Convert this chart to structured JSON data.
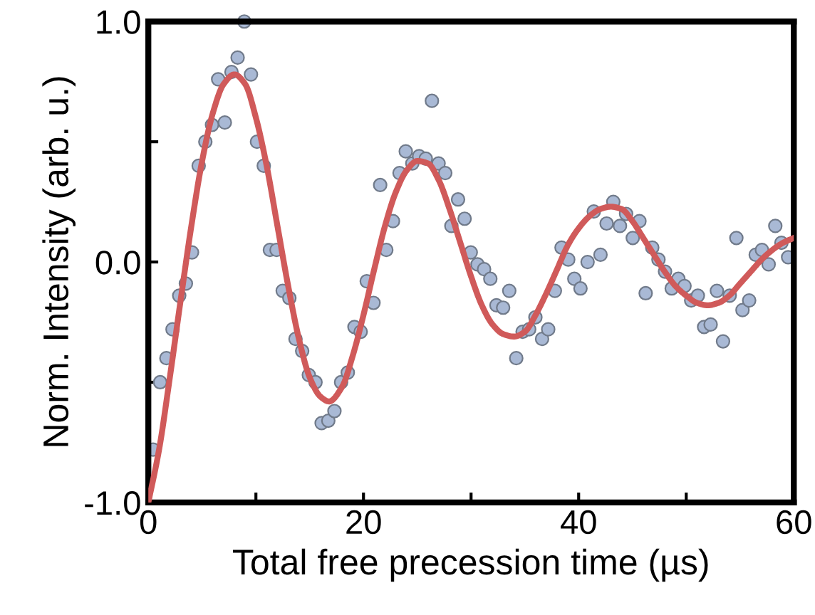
{
  "chart_data": {
    "type": "scatter",
    "xlabel": "Total free precession time (µs)",
    "ylabel": "Norm. Intensity (arb. u.)",
    "xlim": [
      0,
      60
    ],
    "ylim": [
      -1,
      1
    ],
    "xticks": [
      0,
      {
        "value": 10,
        "label": null
      },
      20,
      {
        "value": 30,
        "label": null
      },
      40,
      {
        "value": 50,
        "label": null
      },
      60
    ],
    "yticks": [
      {
        "value": -1,
        "label": "-1.0"
      },
      {
        "value": -0.5,
        "label": null
      },
      {
        "value": 0,
        "label": "0.0"
      },
      {
        "value": 0.5,
        "label": null
      },
      {
        "value": 1,
        "label": "1.0"
      }
    ],
    "grid": false,
    "series": [
      {
        "marker": "circle",
        "color": "#a9b9d5",
        "x": [
          0.44,
          1.1,
          1.68,
          2.25,
          2.87,
          3.49,
          4.06,
          4.68,
          5.3,
          5.92,
          6.49,
          7.11,
          7.73,
          8.3,
          8.92,
          9.54,
          10.1,
          10.73,
          11.3,
          11.92,
          12.49,
          13.11,
          13.68,
          14.3,
          14.92,
          15.54,
          16.11,
          16.73,
          17.3,
          17.92,
          18.54,
          19.16,
          19.74,
          20.3,
          20.93,
          21.55,
          22.12,
          22.74,
          23.35,
          23.93,
          24.54,
          25.17,
          25.79,
          26.36,
          26.98,
          27.6,
          28.17,
          28.79,
          29.4,
          29.97,
          30.6,
          31.21,
          31.79,
          32.36,
          32.98,
          33.55,
          34.2,
          34.79,
          35.4,
          35.98,
          36.6,
          37.17,
          37.79,
          38.41,
          39.03,
          39.6,
          40.17,
          40.83,
          41.41,
          42.03,
          42.6,
          43.22,
          43.84,
          44.41,
          45.03,
          45.65,
          46.23,
          46.84,
          47.42,
          48.03,
          48.65,
          49.27,
          49.84,
          50.46,
          51.08,
          51.66,
          52.27,
          52.85,
          53.42,
          54.04,
          54.66,
          55.23,
          55.85,
          56.46,
          57.04,
          57.66,
          58.28,
          58.85,
          59.47
        ],
        "values": [
          -0.78,
          -0.5,
          -0.4,
          -0.28,
          -0.14,
          -0.09,
          0.04,
          0.4,
          0.5,
          0.57,
          0.76,
          0.58,
          0.79,
          0.85,
          1.0,
          0.78,
          0.5,
          0.4,
          0.05,
          0.05,
          -0.12,
          -0.15,
          -0.32,
          -0.37,
          -0.47,
          -0.5,
          -0.67,
          -0.66,
          -0.62,
          -0.5,
          -0.46,
          -0.27,
          -0.29,
          -0.08,
          -0.17,
          0.32,
          0.05,
          0.17,
          0.37,
          0.46,
          0.41,
          0.44,
          0.43,
          0.67,
          0.41,
          0.37,
          0.15,
          0.26,
          0.18,
          0.04,
          -0.01,
          -0.03,
          -0.07,
          -0.18,
          -0.19,
          -0.12,
          -0.4,
          -0.29,
          -0.28,
          -0.23,
          -0.32,
          -0.28,
          -0.12,
          0.06,
          0.01,
          -0.07,
          -0.11,
          0.0,
          0.21,
          0.03,
          0.16,
          0.25,
          0.15,
          0.2,
          0.1,
          0.17,
          -0.13,
          0.06,
          0.01,
          -0.04,
          -0.11,
          -0.07,
          -0.1,
          -0.16,
          -0.14,
          -0.27,
          -0.26,
          -0.12,
          -0.33,
          -0.14,
          0.1,
          -0.2,
          -0.16,
          0.03,
          0.05,
          -0.01,
          0.15,
          0.08,
          0.02
        ]
      },
      {
        "type": "line",
        "marker": "none",
        "line_style": "solid",
        "color": "#d05a5a",
        "x": [
          0,
          1,
          2,
          3,
          4,
          5,
          6,
          7,
          8,
          9,
          10,
          11,
          12,
          13,
          14,
          15,
          16,
          16.8,
          18,
          19,
          20,
          21,
          22,
          23,
          24,
          25,
          26,
          27,
          28,
          29,
          30,
          31,
          32,
          33,
          34,
          35,
          36,
          37,
          38,
          39,
          40,
          41,
          42,
          43,
          44,
          45,
          46,
          47,
          48,
          49,
          50,
          51,
          52,
          53,
          54,
          55,
          56,
          57,
          58,
          59,
          60
        ],
        "values": [
          -1.0,
          -0.78,
          -0.48,
          -0.16,
          0.15,
          0.42,
          0.62,
          0.74,
          0.78,
          0.74,
          0.6,
          0.4,
          0.15,
          -0.1,
          -0.32,
          -0.48,
          -0.56,
          -0.58,
          -0.52,
          -0.39,
          -0.22,
          -0.03,
          0.15,
          0.29,
          0.38,
          0.42,
          0.41,
          0.34,
          0.22,
          0.08,
          -0.06,
          -0.18,
          -0.26,
          -0.3,
          -0.31,
          -0.29,
          -0.22,
          -0.13,
          -0.03,
          0.07,
          0.14,
          0.19,
          0.22,
          0.23,
          0.22,
          0.17,
          0.1,
          0.03,
          -0.04,
          -0.1,
          -0.14,
          -0.17,
          -0.18,
          -0.17,
          -0.14,
          -0.09,
          -0.04,
          0.01,
          0.05,
          0.08,
          0.1
        ]
      }
    ]
  }
}
